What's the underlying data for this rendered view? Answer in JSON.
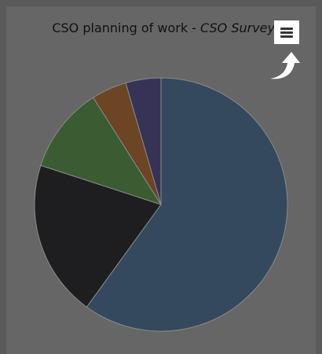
{
  "title": {
    "main": "CSO planning of work - ",
    "subtitle": "CSO Survey"
  },
  "menu": {
    "icon": "hamburger-menu-icon"
  },
  "hint": {
    "icon": "curved-arrow-up-icon"
  },
  "colors": {
    "background": "#5a5a5a",
    "panel": "#666666",
    "slice_border": "#8a8a8a"
  },
  "chart_data": {
    "type": "pie",
    "title": "CSO planning of work - CSO Survey",
    "slices": [
      {
        "label": "",
        "value": 60,
        "color": "#34495e"
      },
      {
        "label": "",
        "value": 20,
        "color": "#1e1e20"
      },
      {
        "label": "",
        "value": 11,
        "color": "#3b5b32"
      },
      {
        "label": "",
        "value": 4.5,
        "color": "#6b4524"
      },
      {
        "label": "",
        "value": 4.5,
        "color": "#373357"
      }
    ],
    "start_angle_deg": 0,
    "direction": "clockwise",
    "legend": "none"
  }
}
